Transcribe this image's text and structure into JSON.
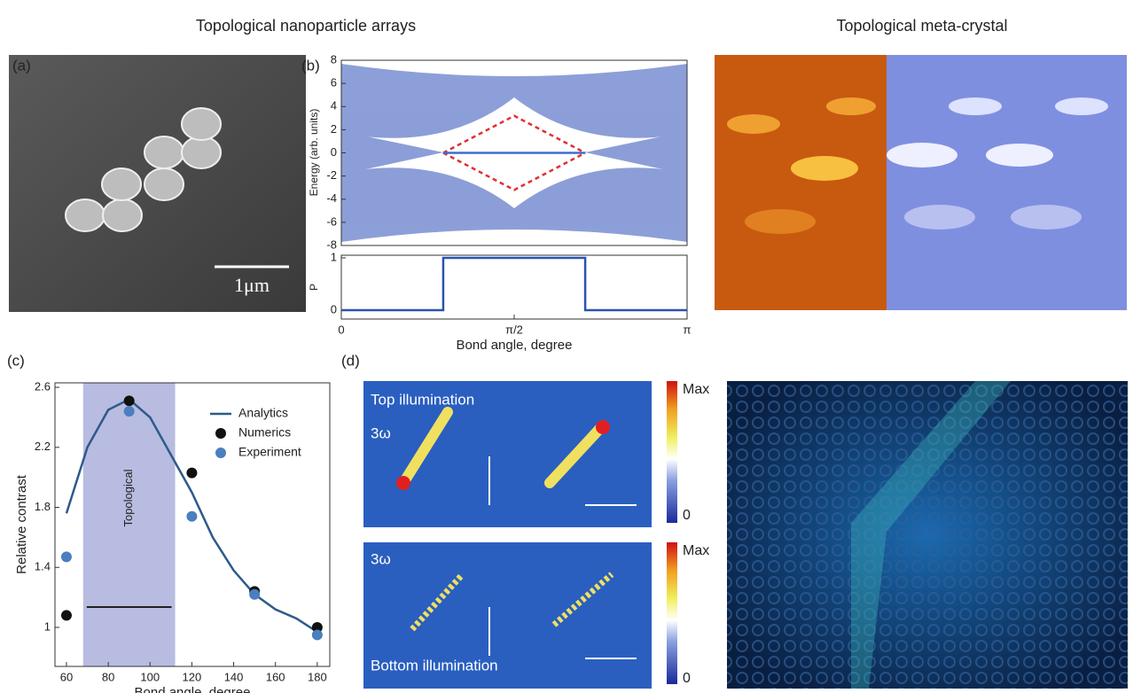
{
  "headers": [
    "Topological nanoparticle arrays",
    "Topological meta-crystal"
  ],
  "panel_labels": [
    "(a)",
    "(b)",
    "(c)",
    "(d)"
  ],
  "scale_bar": "1μm",
  "d_panel": {
    "top": {
      "title": "Top illumination",
      "harmonic": "3ω",
      "scale_max": "Max",
      "scale_min": "0"
    },
    "bottom": {
      "title": "Bottom illumination",
      "harmonic": "3ω",
      "scale_max": "Max",
      "scale_min": "0"
    }
  },
  "chart_data": [
    {
      "type": "line",
      "y_label": "Energy (arb. units)",
      "xlim": [
        0,
        3.1416
      ],
      "ylim": [
        -8,
        8
      ],
      "yticks": [
        -8,
        -6,
        -4,
        -2,
        0,
        2,
        4,
        6,
        8
      ],
      "series": [
        {
          "color": "#e03030",
          "dashed": true,
          "x": [
            0.926,
            1.571,
            2.216
          ],
          "values": [
            0,
            3.2,
            0
          ]
        },
        {
          "color": "#e03030",
          "dashed": true,
          "x": [
            0.926,
            1.571,
            2.216
          ],
          "values": [
            0,
            -3.2,
            0
          ]
        },
        {
          "color": "#3a6fd0",
          "x": [
            0.926,
            2.216
          ],
          "values": [
            0,
            0
          ]
        }
      ]
    },
    {
      "type": "line",
      "y_label": "P",
      "x_label": "Bond angle, degree",
      "xlim": [
        0,
        3.1416
      ],
      "ylim": [
        -0.17,
        1.05
      ],
      "yticks": [
        0,
        1
      ],
      "xticks": [
        {
          "value": 0,
          "label": "0"
        },
        {
          "value": 1.5708,
          "label": "π/2"
        },
        {
          "value": 3.1416,
          "label": "π"
        }
      ],
      "series": [
        {
          "color": "#2a52b0",
          "x": [
            0,
            0.926,
            0.926,
            2.216,
            2.216,
            3.1416
          ],
          "values": [
            0,
            0,
            1,
            1,
            0,
            0
          ]
        }
      ]
    },
    {
      "type": "line",
      "x_label": "Bond angle, degree",
      "y_label": "Relative contrast",
      "xlim": [
        54.5,
        186
      ],
      "ylim": [
        0.74,
        2.63
      ],
      "xticks": [
        60,
        80,
        100,
        120,
        140,
        160,
        180
      ],
      "yticks": [
        1,
        {
          "value": 1.4,
          "label": "1.4"
        },
        {
          "value": 1.8,
          "label": "1.8"
        },
        {
          "value": 2.2,
          "label": "2.2"
        },
        {
          "value": 2.6,
          "label": "2.6"
        }
      ],
      "shaded_region": [
        68,
        112
      ],
      "shaded_label": "Topological",
      "legend": "upper right",
      "series": [
        {
          "name": "Analytics",
          "color": "#2d5a8a",
          "x": [
            60,
            70,
            80,
            90,
            100,
            110,
            120,
            130,
            140,
            150,
            160,
            170,
            180
          ],
          "values": [
            1.76,
            2.2,
            2.45,
            2.52,
            2.4,
            2.15,
            1.9,
            1.6,
            1.38,
            1.22,
            1.12,
            1.06,
            0.97
          ]
        },
        {
          "name": "Numerics",
          "color": "#111111",
          "marker": true,
          "x": [
            60,
            90,
            120,
            150,
            180
          ],
          "values": [
            1.08,
            2.51,
            2.03,
            1.24,
            1.0
          ]
        },
        {
          "name": "Experiment",
          "color": "#4a7fc0",
          "marker": true,
          "x": [
            60,
            90,
            120,
            150,
            180
          ],
          "values": [
            1.47,
            2.44,
            1.74,
            1.22,
            0.95
          ]
        }
      ]
    }
  ]
}
